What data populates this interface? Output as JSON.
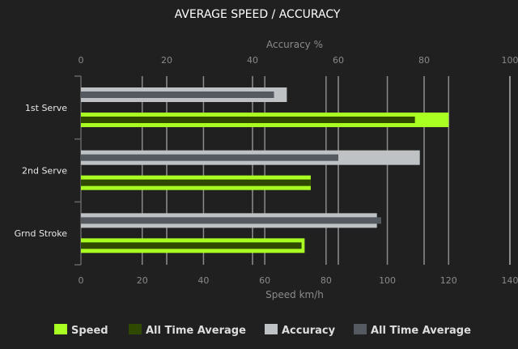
{
  "chart_data": {
    "type": "bar",
    "orientation": "horizontal",
    "title": "AVERAGE SPEED / ACCURACY",
    "categories": [
      "1st Serve",
      "2nd Serve",
      "Grnd Stroke"
    ],
    "speed_axis": {
      "label": "Speed km/h",
      "range": [
        0,
        140
      ],
      "ticks": [
        0,
        20,
        40,
        60,
        80,
        100,
        120,
        140
      ]
    },
    "accuracy_axis": {
      "label": "Accuracy %",
      "range": [
        0,
        100
      ],
      "ticks": [
        0,
        20,
        40,
        60,
        80,
        100
      ]
    },
    "grid": true,
    "legend_placement": "bottom",
    "series": [
      {
        "name": "Speed",
        "axis": "speed",
        "color": "#aaff22",
        "values": [
          120,
          75,
          73
        ]
      },
      {
        "name": "All Time Average",
        "axis": "speed",
        "color": "#2f4a00",
        "values": [
          109,
          75,
          72
        ]
      },
      {
        "name": "Accuracy",
        "axis": "accuracy",
        "color": "#bfc2c4",
        "values": [
          48,
          79,
          69
        ]
      },
      {
        "name": "All Time Average",
        "axis": "accuracy",
        "color": "#555a60",
        "values": [
          45,
          60,
          70
        ]
      }
    ]
  }
}
